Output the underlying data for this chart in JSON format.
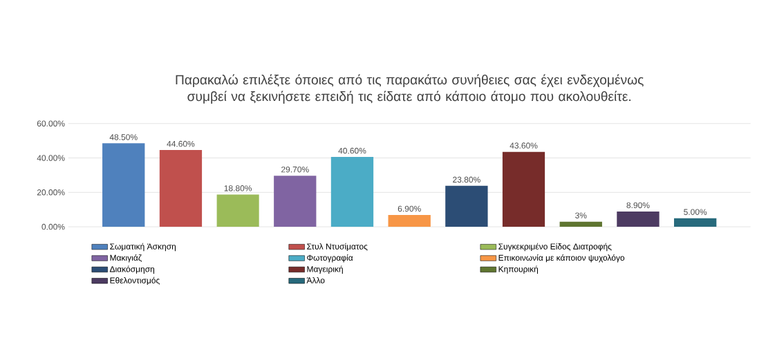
{
  "chart_data": {
    "type": "bar",
    "title": "Παρακαλώ επιλέξτε όποιες από τις παρακάτω συνήθειες σας έχει ενδεχομένως συμβεί να ξεκινήσετε επειδή τις είδατε από κάποιο άτομο που ακολουθείτε.",
    "categories": [
      null
    ],
    "ylim": [
      0,
      60
    ],
    "yticks": [
      {
        "value": 0,
        "label": "0.00%"
      },
      {
        "value": 20,
        "label": "20.00%"
      },
      {
        "value": 40,
        "label": "40.00%"
      },
      {
        "value": 60,
        "label": "60.00%"
      }
    ],
    "grid": "y",
    "legend": "bottom",
    "series": [
      {
        "name": "Σωματική Άσκηση",
        "color": "#4f81bd",
        "values": [
          48.5
        ],
        "value_labels": [
          "48.50%"
        ]
      },
      {
        "name": "Στυλ Ντυσίματος",
        "color": "#c0504d",
        "values": [
          44.6
        ],
        "value_labels": [
          "44.60%"
        ]
      },
      {
        "name": "Συγκεκριμένο Είδος Διατροφής",
        "color": "#9bbb59",
        "values": [
          18.8
        ],
        "value_labels": [
          "18.80%"
        ]
      },
      {
        "name": "Μακιγιάζ",
        "color": "#8064a2",
        "values": [
          29.7
        ],
        "value_labels": [
          "29.70%"
        ]
      },
      {
        "name": "Φωτογραφία",
        "color": "#4bacc6",
        "values": [
          40.6
        ],
        "value_labels": [
          "40.60%"
        ]
      },
      {
        "name": "Επικοινωνία με κάποιον ψυχολόγο",
        "color": "#f79646",
        "values": [
          6.9
        ],
        "value_labels": [
          "6.90%"
        ]
      },
      {
        "name": "Διακόσμηση",
        "color": "#2c4d75",
        "values": [
          23.8
        ],
        "value_labels": [
          "23.80%"
        ]
      },
      {
        "name": "Μαγειρική",
        "color": "#772c2a",
        "values": [
          43.6
        ],
        "value_labels": [
          "43.60%"
        ]
      },
      {
        "name": "Κηπουρική",
        "color": "#5f7530",
        "values": [
          3
        ],
        "value_labels": [
          "3%"
        ]
      },
      {
        "name": "Εθελοντισμός",
        "color": "#4d3b62",
        "values": [
          8.9
        ],
        "value_labels": [
          "8.90%"
        ]
      },
      {
        "name": "Άλλο",
        "color": "#276a7c",
        "values": [
          5
        ],
        "value_labels": [
          "5.00%"
        ]
      }
    ]
  }
}
